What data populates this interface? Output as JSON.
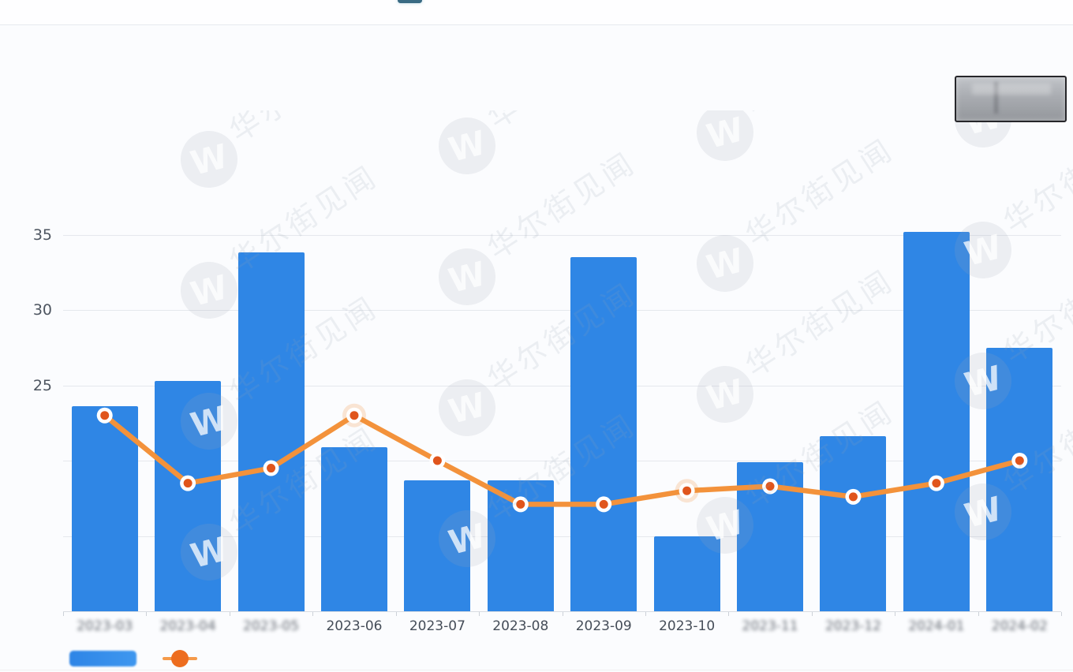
{
  "watermark": {
    "text": "华尔街见闻",
    "logo_letter": "W"
  },
  "legend": {
    "items": [
      {
        "series": "bar",
        "label": "",
        "label_blurred": true,
        "color": "#2f86e5"
      },
      {
        "series": "line",
        "label": "",
        "label_blurred": true,
        "color": "#f3923b"
      }
    ],
    "position": "bottom-left"
  },
  "chart_data": {
    "type": "bar",
    "title": "",
    "xlabel": "",
    "ylabel": "",
    "categories": [
      "2023-03",
      "2023-04",
      "2023-05",
      "2023-06",
      "2023-07",
      "2023-08",
      "2023-09",
      "2023-10",
      "2023-11",
      "2023-12",
      "2024-01",
      "2024-02"
    ],
    "categories_blurred": [
      true,
      true,
      true,
      false,
      false,
      false,
      false,
      false,
      true,
      true,
      true,
      true
    ],
    "series": [
      {
        "name": "",
        "type": "bar",
        "color": "#2f86e5",
        "values": [
          23.6,
          25.3,
          33.8,
          20.9,
          18.7,
          18.7,
          33.5,
          15.0,
          19.9,
          21.6,
          35.2,
          27.5
        ]
      },
      {
        "name": "",
        "type": "line",
        "color": "#f3923b",
        "marker_fill": "#e0551c",
        "marker_ring": "#ffffff",
        "values": [
          23.0,
          18.5,
          19.5,
          23.0,
          20.0,
          17.1,
          17.1,
          18.0,
          18.3,
          17.6,
          18.5,
          20.0
        ],
        "highlighted_points": [
          3,
          7
        ]
      }
    ],
    "ylim": [
      10,
      40
    ],
    "ytick_step": 5,
    "yticks_labeled": [
      25,
      30,
      35
    ],
    "yticks_gridlines": [
      15,
      20,
      25,
      30,
      35
    ],
    "grid": true,
    "legend_position": "bottom-left"
  }
}
